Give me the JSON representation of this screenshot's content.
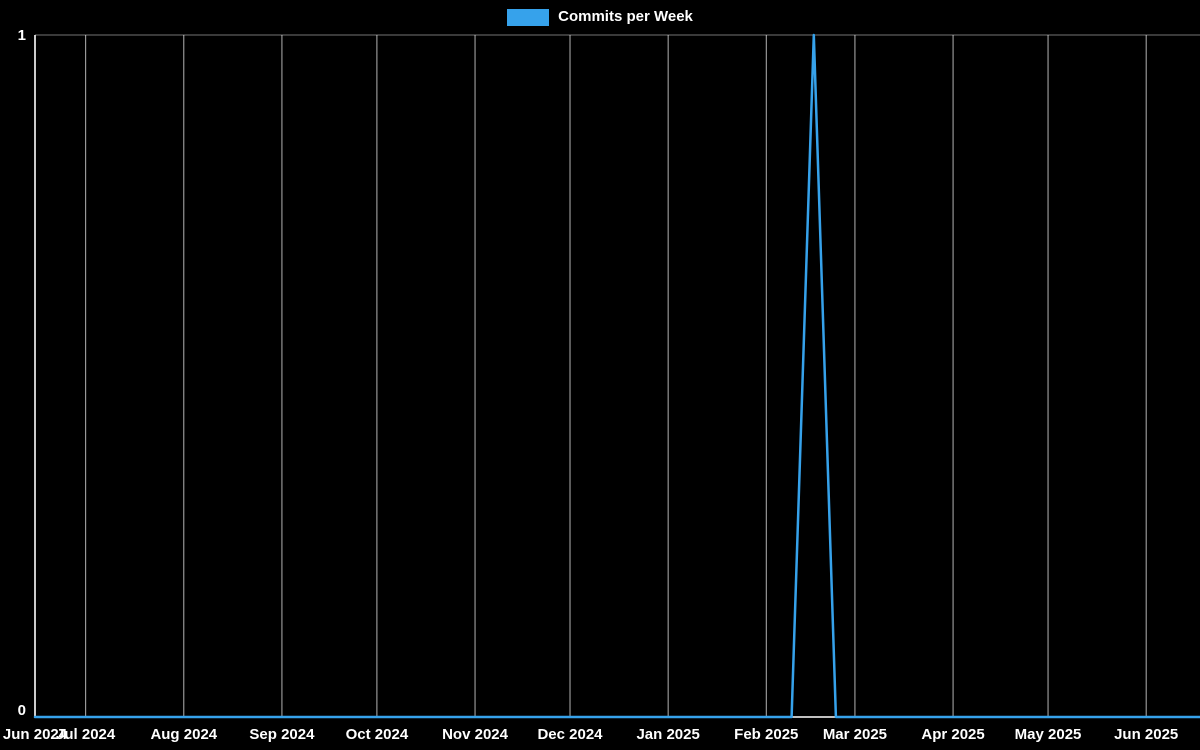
{
  "legend": {
    "label": "Commits per Week"
  },
  "colors": {
    "background": "#000000",
    "line": "#36a2eb",
    "legend_swatch": "#36a2eb",
    "axis": "#ffffff",
    "grid": "#ffffff",
    "text": "#ffffff"
  },
  "chart_data": {
    "type": "line",
    "title": "Commits per Week",
    "legend_position": "top",
    "grid": true,
    "background": "#000000",
    "line_color": "#36a2eb",
    "x_start": "2024-06-15",
    "x_end": "2025-06-18",
    "ylim": [
      0,
      1
    ],
    "y_ticks": [
      {
        "value": 0,
        "label": "0"
      },
      {
        "value": 1,
        "label": "1"
      }
    ],
    "x_ticks": [
      {
        "date": "2024-06-15",
        "label": "Jun 2024"
      },
      {
        "date": "2024-07-01",
        "label": "Jul 2024"
      },
      {
        "date": "2024-08-01",
        "label": "Aug 2024"
      },
      {
        "date": "2024-09-01",
        "label": "Sep 2024"
      },
      {
        "date": "2024-10-01",
        "label": "Oct 2024"
      },
      {
        "date": "2024-11-01",
        "label": "Nov 2024"
      },
      {
        "date": "2024-12-01",
        "label": "Dec 2024"
      },
      {
        "date": "2025-01-01",
        "label": "Jan 2025"
      },
      {
        "date": "2025-02-01",
        "label": "Feb 2025"
      },
      {
        "date": "2025-03-01",
        "label": "Mar 2025"
      },
      {
        "date": "2025-04-01",
        "label": "Apr 2025"
      },
      {
        "date": "2025-05-01",
        "label": "May 2025"
      },
      {
        "date": "2025-06-01",
        "label": "Jun 2025"
      }
    ],
    "series": [
      {
        "name": "Commits per Week",
        "color": "#36a2eb",
        "points": [
          {
            "date": "2024-06-15",
            "value": 0
          },
          {
            "date": "2025-02-09",
            "value": 0
          },
          {
            "date": "2025-02-16",
            "value": 1
          },
          {
            "date": "2025-02-23",
            "value": 0
          },
          {
            "date": "2025-06-18",
            "value": 0
          }
        ]
      }
    ]
  }
}
